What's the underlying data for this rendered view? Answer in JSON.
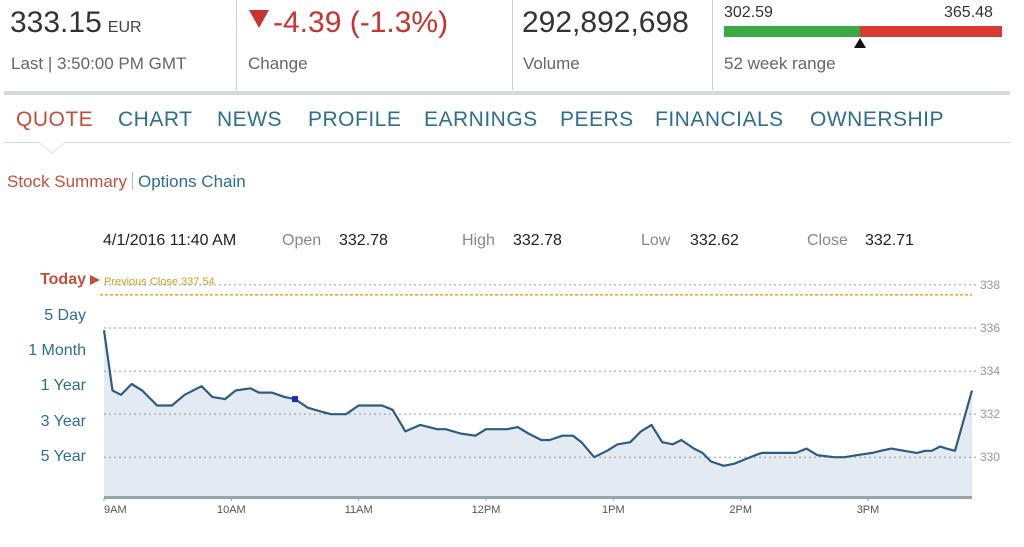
{
  "quote": {
    "last_price": "333.15",
    "currency": "EUR",
    "last_label": "Last | 3:50:00 PM GMT",
    "change_value": "-4.39 (-1.3%)",
    "change_label": "Change",
    "volume_value": "292,892,698",
    "volume_label": "Volume",
    "range_low": "302.59",
    "range_high": "365.48",
    "range_label": "52 week range",
    "range_position": 0.49,
    "colors": {
      "down": "#c8322f",
      "range_green": "#3aa845",
      "range_red": "#d93a35"
    }
  },
  "nav": {
    "tabs": [
      {
        "label": "QUOTE",
        "active": true
      },
      {
        "label": "CHART",
        "active": false
      },
      {
        "label": "NEWS",
        "active": false
      },
      {
        "label": "PROFILE",
        "active": false
      },
      {
        "label": "EARNINGS",
        "active": false
      },
      {
        "label": "PEERS",
        "active": false
      },
      {
        "label": "FINANCIALS",
        "active": false
      },
      {
        "label": "OWNERSHIP",
        "active": false
      }
    ]
  },
  "subtabs": {
    "stock_summary": "Stock Summary",
    "options_chain": "Options Chain"
  },
  "chart_info": {
    "datetime": "4/1/2016 11:40 AM",
    "open_label": "Open",
    "open_value": "332.78",
    "high_label": "High",
    "high_value": "332.78",
    "low_label": "Low",
    "low_value": "332.62",
    "close_label": "Close",
    "close_value": "332.71"
  },
  "range_buttons": [
    {
      "label": "Today",
      "active": true
    },
    {
      "label": "5 Day",
      "active": false
    },
    {
      "label": "1 Month",
      "active": false
    },
    {
      "label": "1 Year",
      "active": false
    },
    {
      "label": "3 Year",
      "active": false
    },
    {
      "label": "5 Year",
      "active": false
    }
  ],
  "previous_close_label": "Previous Close 337.54",
  "chart_data": {
    "type": "area",
    "previous_close": 337.54,
    "ylim": [
      328.2,
      338.6
    ],
    "yticks": [
      330,
      332,
      334,
      336,
      338
    ],
    "ytick_labels": [
      "330",
      "332",
      "334",
      "336",
      "338"
    ],
    "xlim": [
      0,
      409
    ],
    "xticks": [
      0,
      60,
      120,
      180,
      240,
      300,
      360
    ],
    "xtick_labels": [
      "9AM",
      "10AM",
      "11AM",
      "12PM",
      "1PM",
      "2PM",
      "3PM"
    ],
    "hover_index": 16,
    "x": [
      0,
      4,
      8,
      13,
      18,
      25,
      32,
      38,
      46,
      51,
      57,
      62,
      69,
      73,
      79,
      85,
      90,
      96,
      103,
      107,
      114,
      120,
      125,
      131,
      136,
      142,
      149,
      153,
      157,
      161,
      168,
      175,
      180,
      185,
      190,
      195,
      200,
      206,
      210,
      216,
      221,
      225,
      231,
      237,
      242,
      248,
      253,
      258,
      263,
      268,
      272,
      278,
      282,
      286,
      292,
      297,
      302,
      307,
      310,
      314,
      321,
      326,
      331,
      336,
      344,
      349,
      355,
      362,
      366,
      371,
      377,
      383,
      387,
      390,
      394,
      397,
      401,
      409
    ],
    "y": [
      335.9,
      333.1,
      332.9,
      333.4,
      333.1,
      332.4,
      332.4,
      332.9,
      333.3,
      332.8,
      332.7,
      333.1,
      333.2,
      333.0,
      333.0,
      332.8,
      332.7,
      332.3,
      332.1,
      332.0,
      332.0,
      332.4,
      332.4,
      332.4,
      332.2,
      331.2,
      331.5,
      331.4,
      331.3,
      331.3,
      331.1,
      331.0,
      331.3,
      331.3,
      331.3,
      331.4,
      331.1,
      330.8,
      330.8,
      331.0,
      331.0,
      330.7,
      330.0,
      330.3,
      330.6,
      330.7,
      331.2,
      331.5,
      330.7,
      330.6,
      330.8,
      330.4,
      330.2,
      329.8,
      329.6,
      329.7,
      329.9,
      330.1,
      330.2,
      330.2,
      330.2,
      330.2,
      330.4,
      330.1,
      330.0,
      330.0,
      330.1,
      330.2,
      330.3,
      330.4,
      330.3,
      330.2,
      330.3,
      330.3,
      330.5,
      330.4,
      330.3,
      333.1
    ],
    "colors": {
      "line": "#2d5c82",
      "fill": "#e4eaf1",
      "prev_close": "#e3b234",
      "grid": "#9a9a9a"
    }
  }
}
